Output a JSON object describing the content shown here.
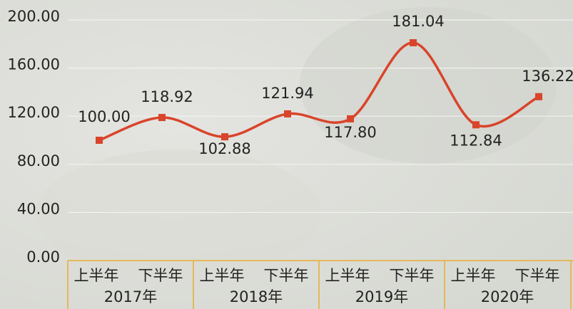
{
  "chart_data": {
    "type": "line",
    "categories": [
      "上半年",
      "下半年",
      "上半年",
      "下半年",
      "上半年",
      "下半年",
      "上半年",
      "下半年"
    ],
    "groups": [
      "2017年",
      "2018年",
      "2019年",
      "2020年"
    ],
    "series": [
      {
        "color": "#d9442a",
        "values": [
          100.0,
          118.92,
          102.88,
          121.94,
          117.8,
          181.04,
          112.84,
          136.22
        ],
        "value_labels": [
          "100.00",
          "118.92",
          "102.88",
          "121.94",
          "117.80",
          "181.04",
          "112.84",
          "136.22"
        ]
      }
    ],
    "ylim": [
      0,
      200
    ],
    "yticks": [
      {
        "value": 0,
        "label": "0.00"
      },
      {
        "value": 40,
        "label": "40.00"
      },
      {
        "value": 80,
        "label": "80.00"
      },
      {
        "value": 120,
        "label": "120.00"
      },
      {
        "value": 160,
        "label": "160.00"
      },
      {
        "value": 200,
        "label": "200.00"
      }
    ],
    "grid": true,
    "smooth": true
  }
}
